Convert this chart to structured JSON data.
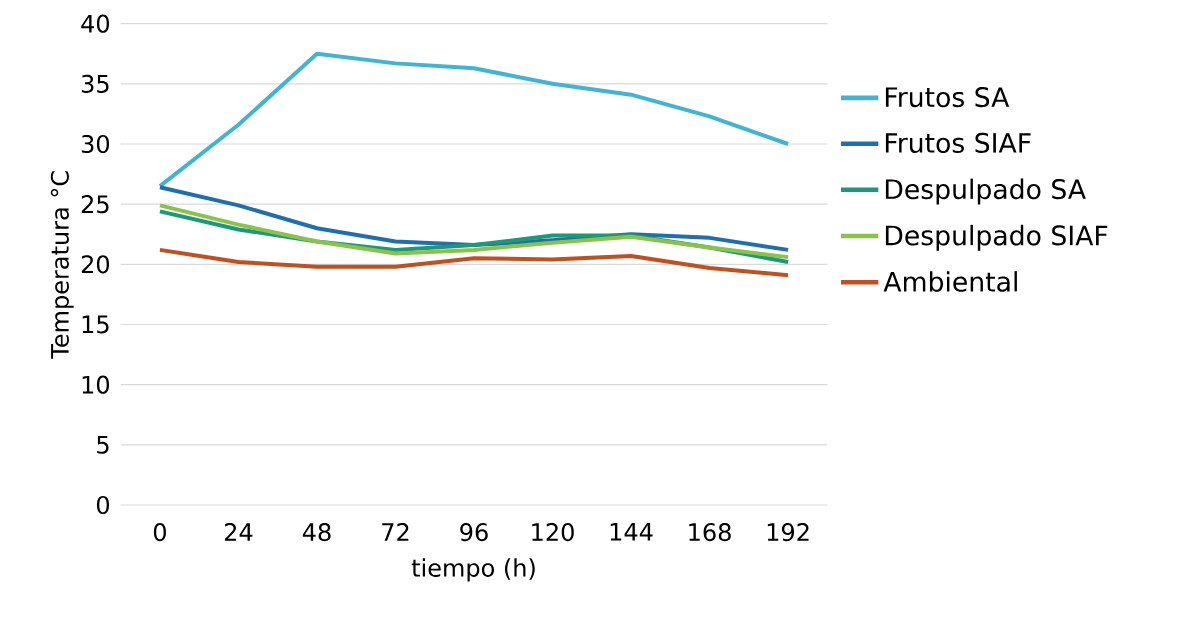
{
  "chart_data": {
    "type": "line",
    "xlabel": "tiempo (h)",
    "ylabel": "Temperatura °C",
    "categories": [
      "0",
      "24",
      "48",
      "72",
      "96",
      "120",
      "144",
      "168",
      "192"
    ],
    "series": [
      {
        "name": "Frutos SA",
        "color": "#41b3d3",
        "values": [
          26.5,
          31.6,
          37.5,
          36.7,
          36.3,
          35.0,
          34.1,
          32.3,
          30.0
        ]
      },
      {
        "name": "Frutos SIAF",
        "color": "#1f6fad",
        "values": [
          26.4,
          24.9,
          23.0,
          21.9,
          21.6,
          22.0,
          22.5,
          22.2,
          21.2
        ]
      },
      {
        "name": "Despulpado SA",
        "color": "#1a9a7a",
        "values": [
          24.4,
          22.9,
          21.9,
          21.2,
          21.6,
          22.4,
          22.4,
          21.4,
          20.2
        ]
      },
      {
        "name": "Despulpado SIAF",
        "color": "#8bc34a",
        "values": [
          24.9,
          23.3,
          21.9,
          20.9,
          21.2,
          21.8,
          22.3,
          21.4,
          20.6
        ]
      },
      {
        "name": "Ambiental",
        "color": "#c0501f",
        "values": [
          21.2,
          20.2,
          19.8,
          19.8,
          20.5,
          20.4,
          20.7,
          19.7,
          19.1
        ]
      }
    ],
    "ylim": [
      0,
      40
    ],
    "yticks": [
      0,
      5,
      10,
      15,
      20,
      25,
      30,
      35,
      40
    ],
    "grid": "y",
    "legend": "right",
    "marker": "none",
    "line_style": "solid"
  }
}
